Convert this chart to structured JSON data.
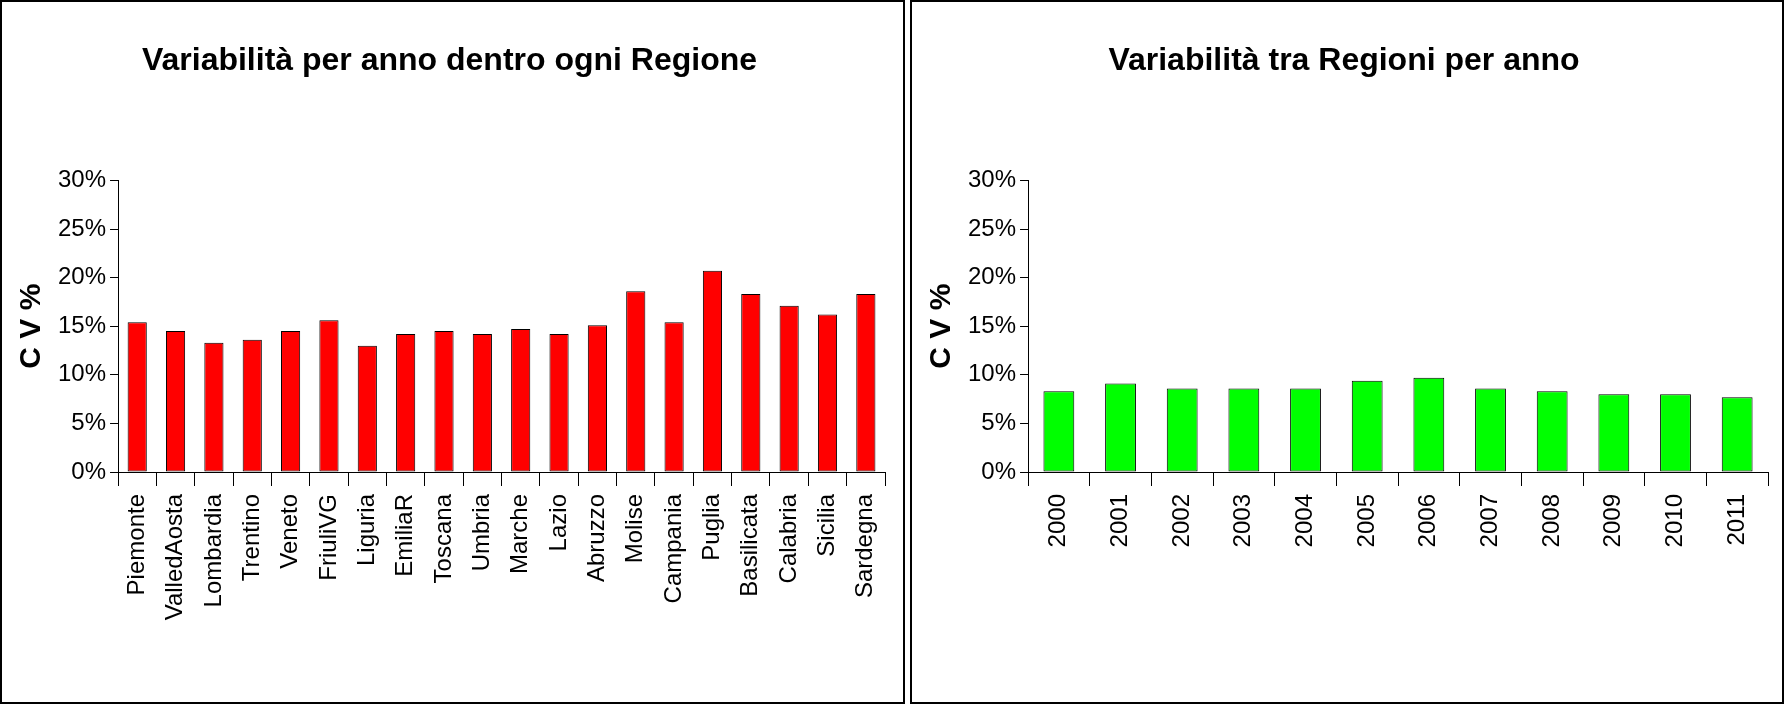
{
  "chart_data": [
    {
      "type": "bar",
      "title": "Variabilità per anno dentro ogni Regione",
      "ylabel": "C V %",
      "categories": [
        "Piemonte",
        "ValledAosta",
        "Lombardia",
        "Trentino",
        "Veneto",
        "FriuliVG",
        "Liguria",
        "EmiliaR",
        "Toscana",
        "Umbria",
        "Marche",
        "Lazio",
        "Abruzzo",
        "Molise",
        "Campania",
        "Puglia",
        "Basilicata",
        "Calabria",
        "Sicilia",
        "Sardegna"
      ],
      "values": [
        15.4,
        14.5,
        13.3,
        13.6,
        14.5,
        15.6,
        13.0,
        14.2,
        14.5,
        14.2,
        14.7,
        14.2,
        15.1,
        18.6,
        15.4,
        20.7,
        18.3,
        17.1,
        16.2,
        18.3
      ],
      "color": "#ff0000",
      "ylim": [
        0,
        30
      ],
      "yticks": [
        {
          "value": 0,
          "label": "0%"
        },
        {
          "value": 5,
          "label": "5%"
        },
        {
          "value": 10,
          "label": "10%"
        },
        {
          "value": 15,
          "label": "15%"
        },
        {
          "value": 20,
          "label": "20%"
        },
        {
          "value": 25,
          "label": "25%"
        },
        {
          "value": 30,
          "label": "30%"
        }
      ]
    },
    {
      "type": "bar",
      "title": "Variabilità tra Regioni per anno",
      "ylabel": "C V %",
      "categories": [
        "2000",
        "2001",
        "2002",
        "2003",
        "2004",
        "2005",
        "2006",
        "2007",
        "2008",
        "2009",
        "2010",
        "2011"
      ],
      "values": [
        8.3,
        9.1,
        8.6,
        8.6,
        8.6,
        9.4,
        9.7,
        8.6,
        8.3,
        8.0,
        8.0,
        7.7
      ],
      "color": "#00ff00",
      "ylim": [
        0,
        30
      ],
      "yticks": [
        {
          "value": 0,
          "label": "0%"
        },
        {
          "value": 5,
          "label": "5%"
        },
        {
          "value": 10,
          "label": "10%"
        },
        {
          "value": 15,
          "label": "15%"
        },
        {
          "value": 20,
          "label": "20%"
        },
        {
          "value": 25,
          "label": "25%"
        },
        {
          "value": 30,
          "label": "30%"
        }
      ]
    }
  ]
}
